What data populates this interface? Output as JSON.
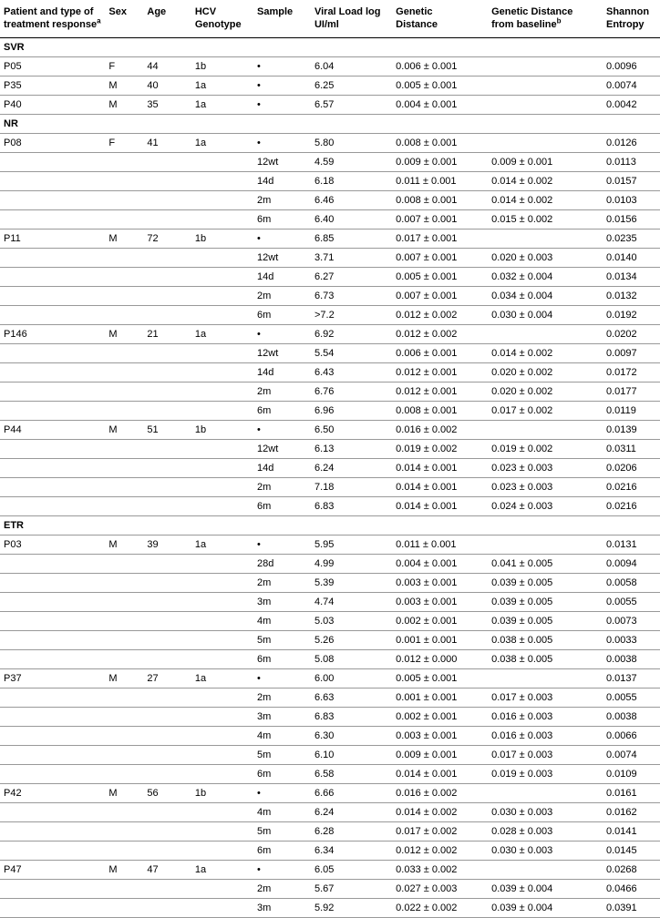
{
  "headers": {
    "patient": "Patient and type of\ntreatment response",
    "patient_sup": "a",
    "sex": "Sex",
    "age": "Age",
    "genotype": "HCV\nGenotype",
    "sample": "Sample",
    "viral": "Viral Load log\nUI/ml",
    "gd": "Genetic\nDistance",
    "gdb": "Genetic Distance\nfrom baseline",
    "gdb_sup": "b",
    "shannon": "Shannon\nEntropy"
  },
  "groups": [
    {
      "label": "SVR",
      "rows": [
        {
          "patient": "P05",
          "sex": "F",
          "age": "44",
          "genotype": "1b",
          "sample": "•",
          "viral": "6.04",
          "gd": "0.006 ± 0.001",
          "gdb": "",
          "shannon": "0.0096"
        },
        {
          "patient": "P35",
          "sex": "M",
          "age": "40",
          "genotype": "1a",
          "sample": "•",
          "viral": "6.25",
          "gd": "0.005 ± 0.001",
          "gdb": "",
          "shannon": "0.0074"
        },
        {
          "patient": "P40",
          "sex": "M",
          "age": "35",
          "genotype": "1a",
          "sample": "•",
          "viral": "6.57",
          "gd": "0.004 ± 0.001",
          "gdb": "",
          "shannon": "0.0042"
        }
      ]
    },
    {
      "label": "NR",
      "rows": [
        {
          "patient": "P08",
          "sex": "F",
          "age": "41",
          "genotype": "1a",
          "sample": "•",
          "viral": "5.80",
          "gd": "0.008 ± 0.001",
          "gdb": "",
          "shannon": "0.0126"
        },
        {
          "patient": "",
          "sex": "",
          "age": "",
          "genotype": "",
          "sample": "12wt",
          "viral": "4.59",
          "gd": "0.009 ± 0.001",
          "gdb": "0.009 ± 0.001",
          "shannon": "0.0113"
        },
        {
          "patient": "",
          "sex": "",
          "age": "",
          "genotype": "",
          "sample": "14d",
          "viral": "6.18",
          "gd": "0.011 ± 0.001",
          "gdb": "0.014 ± 0.002",
          "shannon": "0.0157"
        },
        {
          "patient": "",
          "sex": "",
          "age": "",
          "genotype": "",
          "sample": "2m",
          "viral": "6.46",
          "gd": "0.008 ± 0.001",
          "gdb": "0.014 ± 0.002",
          "shannon": "0.0103"
        },
        {
          "patient": "",
          "sex": "",
          "age": "",
          "genotype": "",
          "sample": "6m",
          "viral": "6.40",
          "gd": "0.007 ± 0.001",
          "gdb": "0.015 ± 0.002",
          "shannon": "0.0156"
        },
        {
          "patient": "P11",
          "sex": "M",
          "age": "72",
          "genotype": "1b",
          "sample": "•",
          "viral": "6.85",
          "gd": "0.017 ± 0.001",
          "gdb": "",
          "shannon": "0.0235"
        },
        {
          "patient": "",
          "sex": "",
          "age": "",
          "genotype": "",
          "sample": "12wt",
          "viral": "3.71",
          "gd": "0.007 ± 0.001",
          "gdb": "0.020 ± 0.003",
          "shannon": "0.0140"
        },
        {
          "patient": "",
          "sex": "",
          "age": "",
          "genotype": "",
          "sample": "14d",
          "viral": "6.27",
          "gd": "0.005 ± 0.001",
          "gdb": "0.032 ± 0.004",
          "shannon": "0.0134"
        },
        {
          "patient": "",
          "sex": "",
          "age": "",
          "genotype": "",
          "sample": "2m",
          "viral": "6.73",
          "gd": "0.007 ± 0.001",
          "gdb": "0.034 ± 0.004",
          "shannon": "0.0132"
        },
        {
          "patient": "",
          "sex": "",
          "age": "",
          "genotype": "",
          "sample": "6m",
          "viral": ">7.2",
          "gd": "0.012 ± 0.002",
          "gdb": "0.030 ± 0.004",
          "shannon": "0.0192"
        },
        {
          "patient": "P146",
          "sex": "M",
          "age": "21",
          "genotype": "1a",
          "sample": "•",
          "viral": "6.92",
          "gd": "0.012 ± 0.002",
          "gdb": "",
          "shannon": "0.0202"
        },
        {
          "patient": "",
          "sex": "",
          "age": "",
          "genotype": "",
          "sample": "12wt",
          "viral": "5.54",
          "gd": "0.006 ± 0.001",
          "gdb": "0.014 ± 0.002",
          "shannon": "0.0097"
        },
        {
          "patient": "",
          "sex": "",
          "age": "",
          "genotype": "",
          "sample": "14d",
          "viral": "6.43",
          "gd": "0.012 ± 0.001",
          "gdb": "0.020 ± 0.002",
          "shannon": "0.0172"
        },
        {
          "patient": "",
          "sex": "",
          "age": "",
          "genotype": "",
          "sample": "2m",
          "viral": "6.76",
          "gd": "0.012 ± 0.001",
          "gdb": "0.020 ± 0.002",
          "shannon": "0.0177"
        },
        {
          "patient": "",
          "sex": "",
          "age": "",
          "genotype": "",
          "sample": "6m",
          "viral": "6.96",
          "gd": "0.008 ± 0.001",
          "gdb": "0.017 ± 0.002",
          "shannon": "0.0119"
        },
        {
          "patient": "P44",
          "sex": "M",
          "age": "51",
          "genotype": "1b",
          "sample": "•",
          "viral": "6.50",
          "gd": "0.016 ± 0.002",
          "gdb": "",
          "shannon": "0.0139"
        },
        {
          "patient": "",
          "sex": "",
          "age": "",
          "genotype": "",
          "sample": "12wt",
          "viral": "6.13",
          "gd": "0.019 ± 0.002",
          "gdb": "0.019 ± 0.002",
          "shannon": "0.0311"
        },
        {
          "patient": "",
          "sex": "",
          "age": "",
          "genotype": "",
          "sample": "14d",
          "viral": "6.24",
          "gd": "0.014 ± 0.001",
          "gdb": "0.023 ± 0.003",
          "shannon": "0.0206"
        },
        {
          "patient": "",
          "sex": "",
          "age": "",
          "genotype": "",
          "sample": "2m",
          "viral": "7.18",
          "gd": "0.014 ± 0.001",
          "gdb": "0.023 ± 0.003",
          "shannon": "0.0216"
        },
        {
          "patient": "",
          "sex": "",
          "age": "",
          "genotype": "",
          "sample": "6m",
          "viral": "6.83",
          "gd": "0.014 ± 0.001",
          "gdb": "0.024 ± 0.003",
          "shannon": "0.0216"
        }
      ]
    },
    {
      "label": "ETR",
      "rows": [
        {
          "patient": "P03",
          "sex": "M",
          "age": "39",
          "genotype": "1a",
          "sample": "•",
          "viral": "5.95",
          "gd": "0.011 ± 0.001",
          "gdb": "",
          "shannon": "0.0131"
        },
        {
          "patient": "",
          "sex": "",
          "age": "",
          "genotype": "",
          "sample": "28d",
          "viral": "4.99",
          "gd": "0.004 ± 0.001",
          "gdb": "0.041 ± 0.005",
          "shannon": "0.0094"
        },
        {
          "patient": "",
          "sex": "",
          "age": "",
          "genotype": "",
          "sample": "2m",
          "viral": "5.39",
          "gd": "0.003 ± 0.001",
          "gdb": "0.039 ± 0.005",
          "shannon": "0.0058"
        },
        {
          "patient": "",
          "sex": "",
          "age": "",
          "genotype": "",
          "sample": "3m",
          "viral": "4.74",
          "gd": "0.003 ± 0.001",
          "gdb": "0.039 ± 0.005",
          "shannon": "0.0055"
        },
        {
          "patient": "",
          "sex": "",
          "age": "",
          "genotype": "",
          "sample": "4m",
          "viral": "5.03",
          "gd": "0.002 ± 0.001",
          "gdb": "0.039 ± 0.005",
          "shannon": "0.0073"
        },
        {
          "patient": "",
          "sex": "",
          "age": "",
          "genotype": "",
          "sample": "5m",
          "viral": "5.26",
          "gd": "0.001 ± 0.001",
          "gdb": "0.038 ± 0.005",
          "shannon": "0.0033"
        },
        {
          "patient": "",
          "sex": "",
          "age": "",
          "genotype": "",
          "sample": "6m",
          "viral": "5.08",
          "gd": "0.012 ± 0.000",
          "gdb": "0.038 ± 0.005",
          "shannon": "0.0038"
        },
        {
          "patient": "P37",
          "sex": "M",
          "age": "27",
          "genotype": "1a",
          "sample": "•",
          "viral": "6.00",
          "gd": "0.005 ± 0.001",
          "gdb": "",
          "shannon": "0.0137"
        },
        {
          "patient": "",
          "sex": "",
          "age": "",
          "genotype": "",
          "sample": "2m",
          "viral": "6.63",
          "gd": "0.001 ± 0.001",
          "gdb": "0.017 ± 0.003",
          "shannon": "0.0055"
        },
        {
          "patient": "",
          "sex": "",
          "age": "",
          "genotype": "",
          "sample": "3m",
          "viral": "6.83",
          "gd": "0.002 ± 0.001",
          "gdb": "0.016 ± 0.003",
          "shannon": "0.0038"
        },
        {
          "patient": "",
          "sex": "",
          "age": "",
          "genotype": "",
          "sample": "4m",
          "viral": "6.30",
          "gd": "0.003 ± 0.001",
          "gdb": "0.016 ± 0.003",
          "shannon": "0.0066"
        },
        {
          "patient": "",
          "sex": "",
          "age": "",
          "genotype": "",
          "sample": "5m",
          "viral": "6.10",
          "gd": "0.009 ± 0.001",
          "gdb": "0.017 ± 0.003",
          "shannon": "0.0074"
        },
        {
          "patient": "",
          "sex": "",
          "age": "",
          "genotype": "",
          "sample": "6m",
          "viral": "6.58",
          "gd": "0.014 ± 0.001",
          "gdb": "0.019 ± 0.003",
          "shannon": "0.0109"
        },
        {
          "patient": "P42",
          "sex": "M",
          "age": "56",
          "genotype": "1b",
          "sample": "•",
          "viral": "6.66",
          "gd": "0.016 ± 0.002",
          "gdb": "",
          "shannon": "0.0161"
        },
        {
          "patient": "",
          "sex": "",
          "age": "",
          "genotype": "",
          "sample": "4m",
          "viral": "6.24",
          "gd": "0.014 ± 0.002",
          "gdb": "0.030 ± 0.003",
          "shannon": "0.0162"
        },
        {
          "patient": "",
          "sex": "",
          "age": "",
          "genotype": "",
          "sample": "5m",
          "viral": "6.28",
          "gd": "0.017 ± 0.002",
          "gdb": "0.028 ± 0.003",
          "shannon": "0.0141"
        },
        {
          "patient": "",
          "sex": "",
          "age": "",
          "genotype": "",
          "sample": "6m",
          "viral": "6.34",
          "gd": "0.012 ± 0.002",
          "gdb": "0.030 ± 0.003",
          "shannon": "0.0145"
        },
        {
          "patient": "P47",
          "sex": "M",
          "age": "47",
          "genotype": "1a",
          "sample": "•",
          "viral": "6.05",
          "gd": "0.033 ± 0.002",
          "gdb": "",
          "shannon": "0.0268"
        },
        {
          "patient": "",
          "sex": "",
          "age": "",
          "genotype": "",
          "sample": "2m",
          "viral": "5.67",
          "gd": "0.027 ± 0.003",
          "gdb": "0.039 ± 0.004",
          "shannon": "0.0466"
        },
        {
          "patient": "",
          "sex": "",
          "age": "",
          "genotype": "",
          "sample": "3m",
          "viral": "5.92",
          "gd": "0.022 ± 0.002",
          "gdb": "0.039 ± 0.004",
          "shannon": "0.0391"
        }
      ]
    }
  ]
}
